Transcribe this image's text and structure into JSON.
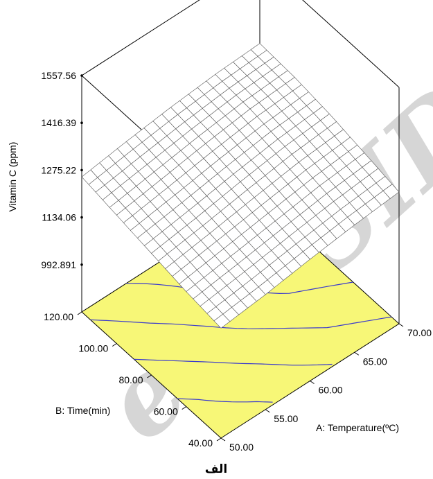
{
  "chart_data": {
    "type": "surface",
    "zlabel": "Vitamin C (ppm)",
    "xlabel": "A: Temperature(ºC)",
    "ylabel": "B: Time(min)",
    "x_ticks": [
      "50.00",
      "55.00",
      "60.00",
      "65.00",
      "70.00"
    ],
    "y_ticks": [
      "40.00",
      "60.00",
      "80.00",
      "100.00",
      "120.00"
    ],
    "z_ticks": [
      "992.891",
      "1134.06",
      "1275.22",
      "1416.39",
      "1557.56"
    ],
    "xlim": [
      50,
      70
    ],
    "ylim": [
      40,
      120
    ],
    "zlim": [
      851.7,
      1557.56
    ],
    "surface": {
      "x": [
        50,
        55,
        60,
        65,
        70
      ],
      "y": [
        40,
        60,
        80,
        100,
        120
      ],
      "z": [
        [
          1180,
          1195,
          1215,
          1232,
          1245
        ],
        [
          1195,
          1215,
          1235,
          1255,
          1268
        ],
        [
          1215,
          1235,
          1258,
          1278,
          1290
        ],
        [
          1235,
          1256,
          1278,
          1296,
          1305
        ],
        [
          1255,
          1275,
          1292,
          1305,
          1312
        ]
      ]
    },
    "contour_floor_color": "#f7f777",
    "contour_line_color": "#3a3acc",
    "grid": true
  },
  "watermark": "e of SID",
  "caption": "الف"
}
